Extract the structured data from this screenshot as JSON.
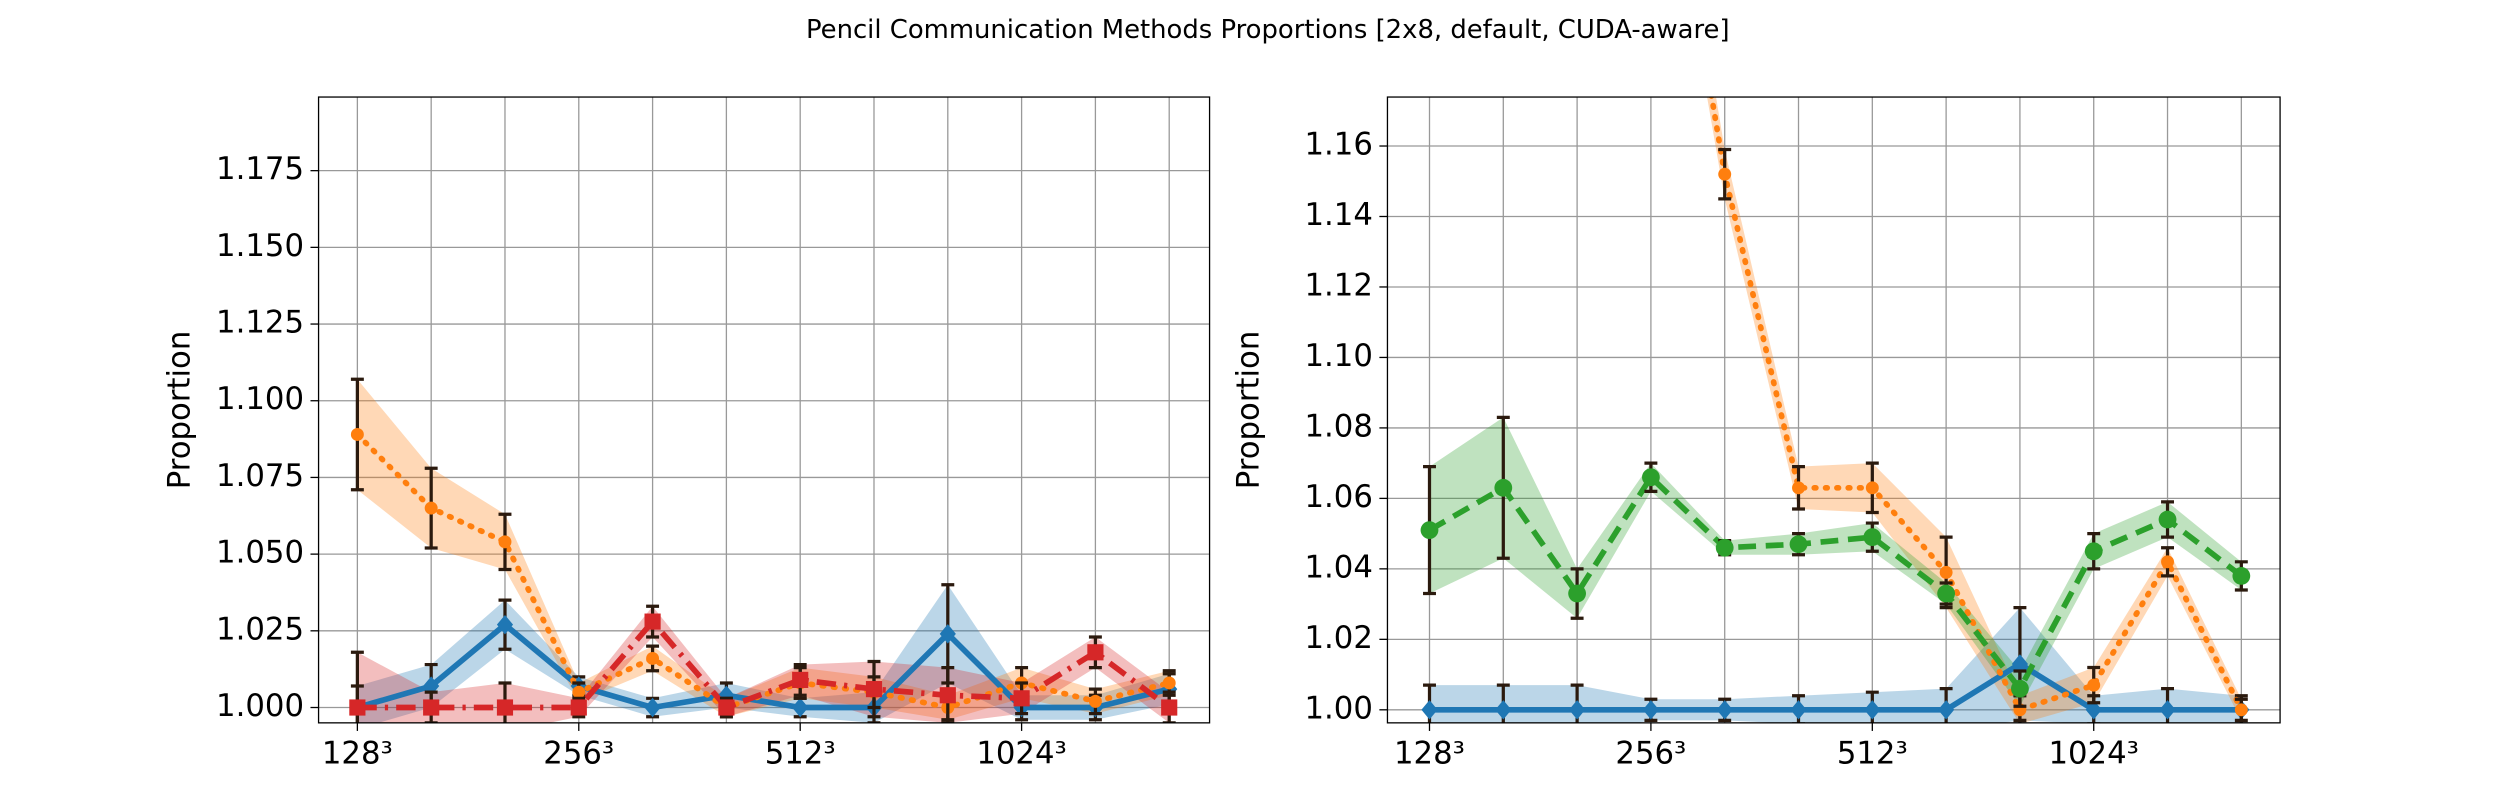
{
  "title": "Pencil Communication Methods Proportions [2x8, default, CUDA-aware]",
  "chart_data": [
    {
      "type": "line",
      "ylabel": "Proportion",
      "categories": [
        "128³",
        null,
        null,
        "256³",
        null,
        null,
        "512³",
        null,
        null,
        "1024³",
        null,
        null
      ],
      "ylim": [
        0.995,
        1.199
      ],
      "yticks": [
        {
          "value": 1.0,
          "label": "1.000"
        },
        1.025,
        {
          "value": 1.05,
          "label": "1.050"
        },
        1.075,
        {
          "value": 1.1,
          "label": "1.100"
        },
        1.125,
        {
          "value": 1.15,
          "label": "1.150"
        },
        1.175
      ],
      "grid": true,
      "series": [
        {
          "color": "#1f77b4",
          "linestyle": "solid",
          "marker": "diamond",
          "values": [
            1.0,
            1.007,
            1.027,
            1.007,
            1.0,
            1.004,
            1.0,
            1.0,
            1.024,
            1.0,
            1.0,
            1.006
          ],
          "errors": [
            0.007,
            0.007,
            0.008,
            0.003,
            0.003,
            0.004,
            0.003,
            0.005,
            0.016,
            0.004,
            0.004,
            0.005
          ]
        },
        {
          "color": "#ff7f0e",
          "linestyle": "dotted",
          "marker": "circle",
          "values": [
            1.089,
            1.065,
            1.054,
            1.005,
            1.016,
            1.0,
            1.008,
            1.005,
            1.0,
            1.008,
            1.002,
            1.008
          ],
          "errors": [
            0.018,
            0.013,
            0.009,
            0.003,
            0.004,
            0.003,
            0.005,
            0.005,
            0.004,
            0.005,
            0.004,
            0.004
          ]
        },
        {
          "color": "#d62728",
          "linestyle": "dashdot",
          "marker": "square",
          "values": [
            1.0,
            1.0,
            1.0,
            1.0,
            1.028,
            1.0,
            1.009,
            1.006,
            1.004,
            1.003,
            1.018,
            1.0
          ],
          "errors": [
            0.018,
            0.005,
            0.008,
            0.003,
            0.005,
            0.003,
            0.005,
            0.009,
            0.009,
            0.005,
            0.005,
            0.005
          ]
        }
      ]
    },
    {
      "type": "line",
      "ylabel": "Proportion",
      "categories": [
        "128³",
        null,
        null,
        "256³",
        null,
        null,
        "512³",
        null,
        null,
        "1024³",
        null,
        null
      ],
      "ylim": [
        0.9963,
        1.1739
      ],
      "yticks": [
        {
          "value": 1.0,
          "label": "1.00"
        },
        1.02,
        1.04,
        1.06,
        1.08,
        {
          "value": 1.1,
          "label": "1.10"
        },
        1.12,
        1.14,
        1.16
      ],
      "grid": true,
      "series": [
        {
          "color": "#1f77b4",
          "linestyle": "solid",
          "marker": "diamond",
          "values": [
            1.0,
            1.0,
            1.0,
            1.0,
            1.0,
            1.0,
            1.0,
            1.0,
            1.013,
            1.0,
            1.0,
            1.0
          ],
          "errors": [
            0.007,
            0.007,
            0.007,
            0.003,
            0.003,
            0.004,
            0.005,
            0.006,
            0.016,
            0.004,
            0.006,
            0.004
          ]
        },
        {
          "color": "#ff7f0e",
          "linestyle": "dotted",
          "marker": "circle",
          "values": [
            null,
            null,
            null,
            1.276,
            1.152,
            1.063,
            1.063,
            1.039,
            1.0,
            1.007,
            1.042,
            1.0
          ],
          "errors": [
            null,
            null,
            null,
            0.01,
            0.007,
            0.006,
            0.007,
            0.01,
            0.004,
            0.005,
            0.004,
            0.003
          ]
        },
        {
          "color": "#2ca02c",
          "linestyle": "dashed",
          "marker": "circle",
          "values": [
            1.051,
            1.063,
            1.033,
            1.066,
            1.046,
            1.047,
            1.049,
            1.033,
            1.006,
            1.045,
            1.054,
            1.038
          ],
          "errors": [
            0.018,
            0.02,
            0.007,
            0.004,
            0.002,
            0.003,
            0.004,
            0.003,
            0.005,
            0.005,
            0.005,
            0.004
          ]
        }
      ]
    }
  ]
}
